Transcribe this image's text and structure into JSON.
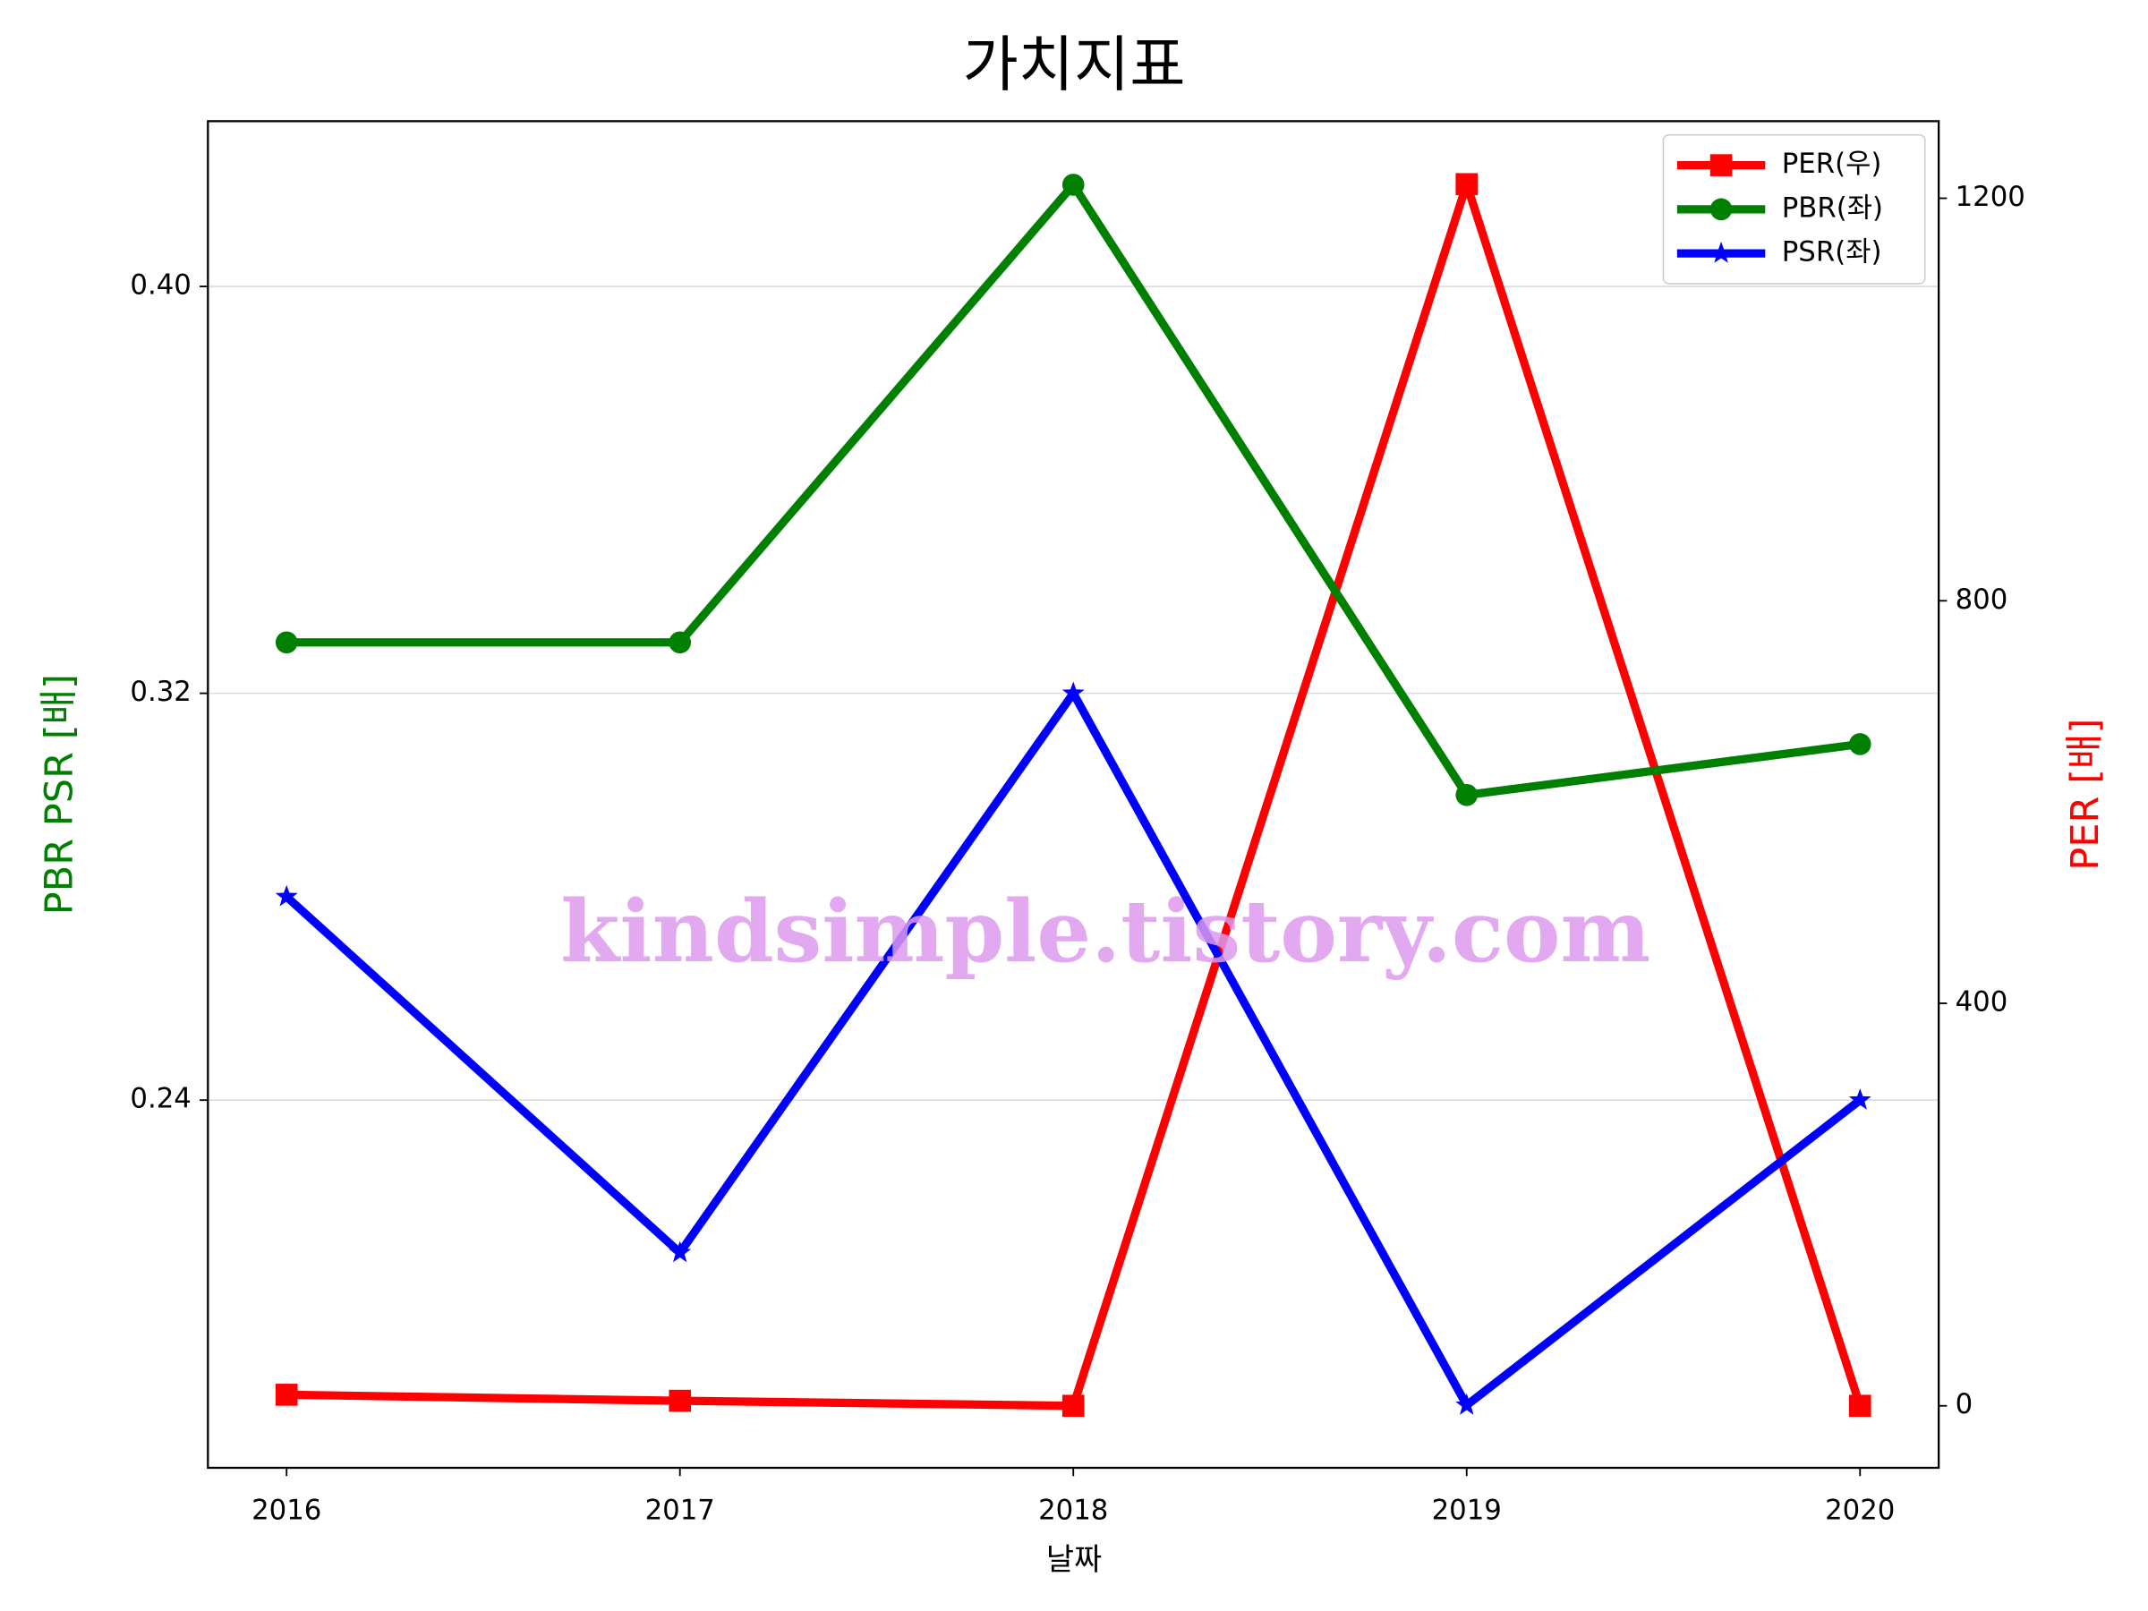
{
  "chart_data": {
    "type": "line",
    "title": "가치지표",
    "xlabel": "날짜",
    "ylabel": "PBR PSR [배]",
    "ylabel_color": "#008000",
    "y2label": "PER [배]",
    "y2label_color": "#ff0000",
    "watermark": "kindsimple.tistory.com",
    "x": [
      2016,
      2017,
      2018,
      2019,
      2020
    ],
    "xlim": [
      2015.8,
      2020.2
    ],
    "xticks": [
      2016,
      2017,
      2018,
      2019,
      2020
    ],
    "ylim": [
      0.1677,
      0.4325
    ],
    "yticks": [
      0.24,
      0.32,
      {
        "value": 0.4,
        "label": "0.40"
      }
    ],
    "y2lim": [
      -61.6,
      1276.6
    ],
    "y2ticks": [
      0,
      400,
      800,
      1200
    ],
    "grid": "y",
    "legend": "upper right",
    "series": [
      {
        "name": "PER(우)",
        "color": "#ff0000",
        "marker": "square",
        "axis": "y2",
        "values": [
          11,
          5,
          0,
          1214,
          0
        ]
      },
      {
        "name": "PBR(좌)",
        "color": "#008000",
        "marker": "circle",
        "values": [
          0.33,
          0.33,
          0.42,
          0.3,
          0.31
        ]
      },
      {
        "name": "PSR(좌)",
        "color": "#0000ff",
        "marker": "star",
        "values": [
          0.28,
          0.21,
          0.32,
          0.18,
          0.24
        ]
      }
    ]
  }
}
